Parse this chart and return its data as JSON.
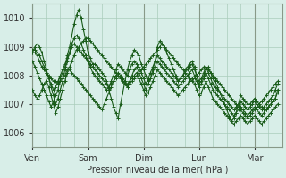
{
  "title": "",
  "xlabel": "Pression niveau de la mer( hPa )",
  "ylabel": "",
  "bg_color": "#d8eee8",
  "plot_bg_color": "#d8eee8",
  "grid_color": "#aaccbb",
  "line_color": "#1a5c1a",
  "marker": "+",
  "ylim": [
    1005.5,
    1010.5
  ],
  "yticks": [
    1006,
    1007,
    1008,
    1009,
    1010
  ],
  "day_labels": [
    "Ven",
    "Sam",
    "Dim",
    "Lun",
    "Mar"
  ],
  "day_positions": [
    0,
    24,
    48,
    72,
    96
  ],
  "xlim": [
    0,
    108
  ],
  "series": [
    [
      1008.8,
      1008.8,
      1008.7,
      1008.5,
      1008.3,
      1008.2,
      1008.1,
      1008.0,
      1007.9,
      1007.8,
      1007.8,
      1007.7,
      1007.8,
      1007.9,
      1008.0,
      1008.2,
      1008.3,
      1008.5,
      1008.7,
      1008.9,
      1009.0,
      1009.1,
      1009.2,
      1009.3,
      1009.3,
      1009.2,
      1009.1,
      1009.0,
      1008.9,
      1008.8,
      1008.7,
      1008.6,
      1008.5,
      1008.4,
      1008.3,
      1008.2,
      1008.1,
      1008.0,
      1007.9,
      1007.8,
      1007.7,
      1007.6,
      1007.7,
      1007.8,
      1007.9,
      1008.0,
      1008.1,
      1008.2,
      1008.3,
      1008.4,
      1008.5,
      1008.6,
      1008.7,
      1008.8,
      1008.9,
      1009.0,
      1009.1,
      1009.0,
      1008.9,
      1008.8,
      1008.7,
      1008.6,
      1008.5,
      1008.4,
      1008.3,
      1008.2,
      1008.1,
      1008.0,
      1007.9,
      1007.8,
      1007.9,
      1008.0,
      1008.1,
      1008.2,
      1008.3,
      1008.3,
      1008.2,
      1008.1,
      1008.0,
      1007.9,
      1007.8,
      1007.7,
      1007.6,
      1007.5,
      1007.4,
      1007.3,
      1007.2,
      1007.1,
      1007.0,
      1006.9,
      1006.8,
      1006.7,
      1006.6,
      1006.5,
      1006.6,
      1006.7,
      1006.8,
      1006.9,
      1007.0,
      1007.1,
      1007.2,
      1007.3,
      1007.4,
      1007.5,
      1007.6,
      1007.7,
      1007.8
    ],
    [
      1008.5,
      1008.3,
      1008.1,
      1007.9,
      1007.7,
      1007.5,
      1007.3,
      1007.1,
      1006.9,
      1007.1,
      1007.3,
      1007.5,
      1007.9,
      1008.1,
      1008.3,
      1008.7,
      1009.0,
      1009.4,
      1009.8,
      1010.1,
      1010.3,
      1010.0,
      1009.6,
      1009.2,
      1008.8,
      1008.6,
      1008.4,
      1008.4,
      1008.3,
      1008.2,
      1008.1,
      1008.0,
      1007.8,
      1007.5,
      1007.2,
      1006.9,
      1006.7,
      1006.5,
      1007.0,
      1007.4,
      1007.8,
      1008.2,
      1008.5,
      1008.7,
      1008.9,
      1008.8,
      1008.7,
      1008.4,
      1008.2,
      1008.0,
      1007.8,
      1007.9,
      1008.2,
      1008.5,
      1009.0,
      1009.2,
      1009.1,
      1009.0,
      1008.8,
      1008.6,
      1008.4,
      1008.2,
      1008.0,
      1007.8,
      1007.9,
      1008.0,
      1008.2,
      1008.3,
      1008.4,
      1008.5,
      1008.3,
      1008.0,
      1007.7,
      1007.8,
      1008.0,
      1008.2,
      1008.3,
      1008.1,
      1007.9,
      1007.8,
      1007.6,
      1007.4,
      1007.2,
      1007.0,
      1006.8,
      1006.6,
      1006.4,
      1006.5,
      1006.7,
      1007.0,
      1007.3,
      1007.2,
      1007.1,
      1007.0,
      1007.0,
      1007.1,
      1007.2,
      1007.1,
      1007.0,
      1006.9,
      1006.8,
      1006.8,
      1006.9,
      1007.0,
      1007.1,
      1007.2,
      1007.5
    ],
    [
      1008.8,
      1009.0,
      1009.1,
      1009.0,
      1008.8,
      1008.5,
      1008.2,
      1007.9,
      1007.6,
      1007.3,
      1007.0,
      1007.2,
      1007.5,
      1007.8,
      1008.2,
      1008.5,
      1008.8,
      1009.1,
      1009.3,
      1009.4,
      1009.3,
      1009.1,
      1008.9,
      1008.7,
      1008.5,
      1008.3,
      1008.1,
      1008.0,
      1007.9,
      1007.8,
      1007.7,
      1007.6,
      1007.5,
      1007.6,
      1007.8,
      1008.0,
      1008.2,
      1008.4,
      1008.3,
      1008.2,
      1008.1,
      1008.0,
      1008.2,
      1008.4,
      1008.5,
      1008.4,
      1008.3,
      1008.1,
      1007.9,
      1007.7,
      1007.9,
      1008.1,
      1008.3,
      1008.5,
      1008.7,
      1008.6,
      1008.5,
      1008.4,
      1008.3,
      1008.2,
      1008.1,
      1008.0,
      1007.9,
      1007.8,
      1007.9,
      1008.0,
      1008.1,
      1008.2,
      1008.3,
      1008.4,
      1008.2,
      1008.0,
      1007.8,
      1007.9,
      1008.1,
      1008.3,
      1008.1,
      1007.9,
      1007.7,
      1007.6,
      1007.5,
      1007.4,
      1007.3,
      1007.2,
      1007.1,
      1007.0,
      1006.9,
      1006.8,
      1006.9,
      1007.0,
      1007.1,
      1007.0,
      1006.9,
      1006.8,
      1006.9,
      1007.0,
      1007.1,
      1007.0,
      1006.9,
      1006.8,
      1006.9,
      1007.0,
      1007.1,
      1007.2,
      1007.3,
      1007.5,
      1007.7
    ],
    [
      1007.5,
      1007.3,
      1007.2,
      1007.3,
      1007.5,
      1007.7,
      1007.8,
      1007.6,
      1007.3,
      1007.0,
      1006.7,
      1006.9,
      1007.2,
      1007.5,
      1007.8,
      1008.1,
      1008.2,
      1008.1,
      1008.0,
      1007.9,
      1007.8,
      1007.7,
      1007.6,
      1007.5,
      1007.4,
      1007.3,
      1007.2,
      1007.1,
      1007.0,
      1006.9,
      1006.8,
      1007.0,
      1007.2,
      1007.4,
      1007.6,
      1007.8,
      1008.0,
      1008.1,
      1008.0,
      1007.9,
      1007.8,
      1007.7,
      1007.8,
      1007.9,
      1008.0,
      1008.1,
      1007.9,
      1007.7,
      1007.5,
      1007.3,
      1007.4,
      1007.6,
      1007.8,
      1008.0,
      1008.2,
      1008.1,
      1008.0,
      1007.9,
      1007.8,
      1007.7,
      1007.6,
      1007.5,
      1007.4,
      1007.3,
      1007.4,
      1007.5,
      1007.6,
      1007.7,
      1007.8,
      1007.9,
      1007.7,
      1007.5,
      1007.3,
      1007.4,
      1007.6,
      1007.8,
      1007.6,
      1007.4,
      1007.2,
      1007.1,
      1007.0,
      1006.9,
      1006.8,
      1006.7,
      1006.6,
      1006.5,
      1006.4,
      1006.3,
      1006.4,
      1006.5,
      1006.6,
      1006.5,
      1006.4,
      1006.3,
      1006.4,
      1006.5,
      1006.6,
      1006.5,
      1006.4,
      1006.3,
      1006.4,
      1006.5,
      1006.6,
      1006.7,
      1006.8,
      1006.9,
      1007.0
    ],
    [
      1008.9,
      1008.9,
      1008.8,
      1008.7,
      1008.5,
      1008.3,
      1008.1,
      1007.9,
      1007.7,
      1007.5,
      1007.6,
      1007.8,
      1008.0,
      1008.2,
      1008.4,
      1008.6,
      1008.8,
      1009.0,
      1009.1,
      1009.0,
      1008.9,
      1008.8,
      1008.7,
      1008.6,
      1008.5,
      1008.4,
      1008.3,
      1008.2,
      1008.1,
      1008.0,
      1007.9,
      1007.8,
      1007.7,
      1007.6,
      1007.7,
      1007.8,
      1007.9,
      1008.0,
      1007.9,
      1007.8,
      1007.7,
      1007.6,
      1007.8,
      1008.0,
      1008.2,
      1008.3,
      1008.1,
      1007.9,
      1007.7,
      1007.5,
      1007.7,
      1007.9,
      1008.1,
      1008.3,
      1008.5,
      1008.4,
      1008.3,
      1008.2,
      1008.1,
      1008.0,
      1007.9,
      1007.8,
      1007.7,
      1007.6,
      1007.7,
      1007.8,
      1007.9,
      1008.0,
      1008.1,
      1008.2,
      1008.0,
      1007.8,
      1007.6,
      1007.7,
      1007.9,
      1008.1,
      1007.9,
      1007.7,
      1007.5,
      1007.4,
      1007.3,
      1007.2,
      1007.1,
      1007.0,
      1006.9,
      1006.8,
      1006.7,
      1006.6,
      1006.7,
      1006.8,
      1006.9,
      1006.8,
      1006.7,
      1006.6,
      1006.7,
      1006.8,
      1006.9,
      1006.8,
      1006.7,
      1006.6,
      1006.7,
      1006.8,
      1006.9,
      1007.0,
      1007.1,
      1007.2,
      1007.4
    ]
  ]
}
